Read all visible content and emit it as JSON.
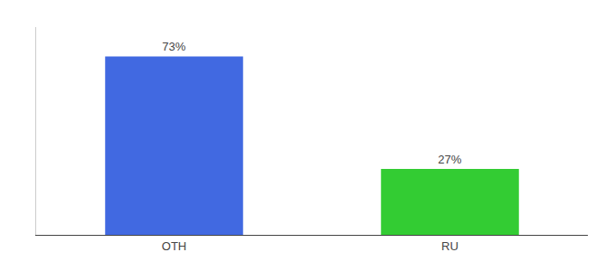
{
  "chart_data": {
    "type": "bar",
    "categories": [
      "OTH",
      "RU"
    ],
    "values": [
      73,
      27
    ],
    "value_labels": [
      "73%",
      "27%"
    ],
    "data_labels": true,
    "colors": [
      "#4169e1",
      "#33cc33"
    ],
    "ylim": [
      0,
      85
    ],
    "grid": false,
    "tick_labels": "x"
  }
}
